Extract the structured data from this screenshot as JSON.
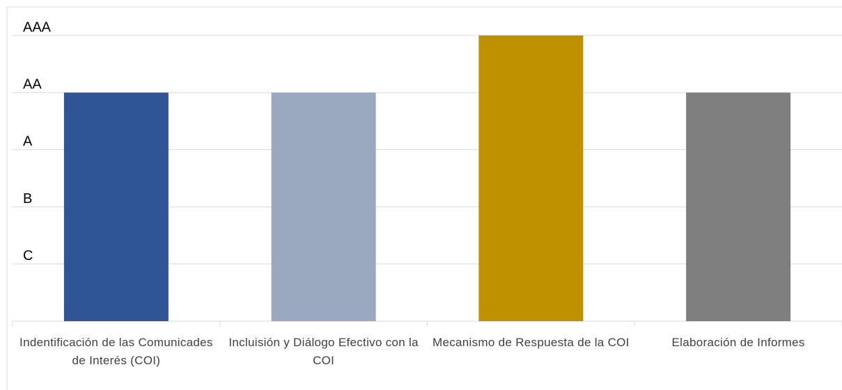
{
  "chart_data": {
    "type": "bar",
    "categories": [
      "Indentificación de las Comunicades de Interés (COI)",
      "Incluisión y Diálogo Efectivo con la COI",
      "Mecanismo de Respuesta de la COI",
      "Elaboración de Informes"
    ],
    "values": [
      4,
      4,
      5,
      4
    ],
    "colors": [
      "#2f5597",
      "#9aa9c0",
      "#bf9000",
      "#7f7f7f"
    ],
    "ylim": [
      0,
      5
    ],
    "yticks": [
      {
        "value": 1,
        "label": "C"
      },
      {
        "value": 2,
        "label": "B"
      },
      {
        "value": 3,
        "label": "A"
      },
      {
        "value": 4,
        "label": "AA"
      },
      {
        "value": 5,
        "label": "AAA"
      }
    ],
    "grid": true
  }
}
